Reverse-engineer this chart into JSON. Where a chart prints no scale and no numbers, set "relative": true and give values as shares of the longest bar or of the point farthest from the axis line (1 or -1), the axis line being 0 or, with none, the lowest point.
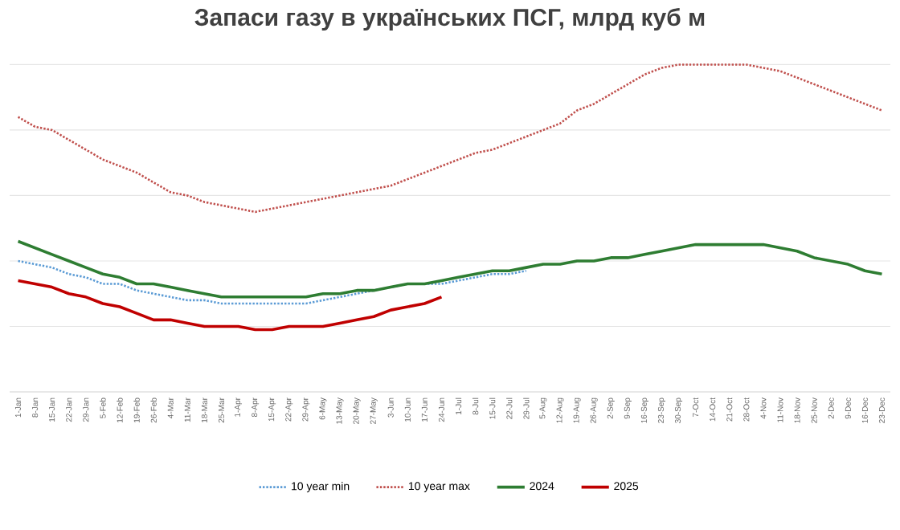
{
  "chart_data": {
    "type": "line",
    "title": "Запаси газу в українських ПСГ, млрд куб м",
    "relative": true,
    "grid": "y",
    "legend": "bottom",
    "marker": "none",
    "categories": [
      "1-Jan",
      "8-Jan",
      "15-Jan",
      "22-Jan",
      "29-Jan",
      "5-Feb",
      "12-Feb",
      "19-Feb",
      "26-Feb",
      "4-Mar",
      "11-Mar",
      "18-Mar",
      "25-Mar",
      "1-Apr",
      "8-Apr",
      "15-Apr",
      "22-Apr",
      "29-Apr",
      "6-May",
      "13-May",
      "20-May",
      "27-May",
      "3-Jun",
      "10-Jun",
      "17-Jun",
      "24-Jun",
      "1-Jul",
      "8-Jul",
      "15-Jul",
      "22-Jul",
      "29-Jul",
      "5-Aug",
      "12-Aug",
      "19-Aug",
      "26-Aug",
      "2-Sep",
      "9-Sep",
      "16-Sep",
      "23-Sep",
      "30-Sep",
      "7-Oct",
      "14-Oct",
      "21-Oct",
      "28-Oct",
      "4-Nov",
      "11-Nov",
      "18-Nov",
      "25-Nov",
      "2-Dec",
      "9-Dec",
      "16-Dec",
      "23-Dec"
    ],
    "series": [
      {
        "name": "10 year min",
        "color": "#5b9bd5",
        "line_style": "dotted",
        "values": [
          0.4,
          0.39,
          0.38,
          0.36,
          0.35,
          0.33,
          0.33,
          0.31,
          0.3,
          0.29,
          0.28,
          0.28,
          0.27,
          0.27,
          0.27,
          0.27,
          0.27,
          0.27,
          0.28,
          0.29,
          0.3,
          0.31,
          0.32,
          0.33,
          0.33,
          0.33,
          0.34,
          0.35,
          0.36,
          0.36,
          0.37,
          null,
          null,
          null,
          null,
          null,
          null,
          null,
          null,
          null,
          null,
          null,
          null,
          null,
          null,
          null,
          null,
          null,
          null,
          null,
          null,
          null
        ]
      },
      {
        "name": "10 year max",
        "color": "#c0504d",
        "line_style": "dotted",
        "values": [
          0.84,
          0.81,
          0.8,
          0.77,
          0.74,
          0.71,
          0.69,
          0.67,
          0.64,
          0.61,
          0.6,
          0.58,
          0.57,
          0.56,
          0.55,
          0.56,
          0.57,
          0.58,
          0.59,
          0.6,
          0.61,
          0.62,
          0.63,
          0.65,
          0.67,
          0.69,
          0.71,
          0.73,
          0.74,
          0.76,
          0.78,
          0.8,
          0.82,
          0.86,
          0.88,
          0.91,
          0.94,
          0.97,
          0.99,
          1.0,
          1.0,
          1.0,
          1.0,
          1.0,
          0.99,
          0.98,
          0.96,
          0.94,
          0.92,
          0.9,
          0.88,
          0.86
        ]
      },
      {
        "name": "2024",
        "color": "#2e7d32",
        "line_style": "solid",
        "values": [
          0.46,
          0.44,
          0.42,
          0.4,
          0.38,
          0.36,
          0.35,
          0.33,
          0.33,
          0.32,
          0.31,
          0.3,
          0.29,
          0.29,
          0.29,
          0.29,
          0.29,
          0.29,
          0.3,
          0.3,
          0.31,
          0.31,
          0.32,
          0.33,
          0.33,
          0.34,
          0.35,
          0.36,
          0.37,
          0.37,
          0.38,
          0.39,
          0.39,
          0.4,
          0.4,
          0.41,
          0.41,
          0.42,
          0.43,
          0.44,
          0.45,
          0.45,
          0.45,
          0.45,
          0.45,
          0.44,
          0.43,
          0.41,
          0.4,
          0.39,
          0.37,
          0.36
        ]
      },
      {
        "name": "2025",
        "color": "#c00000",
        "line_style": "solid",
        "values": [
          0.34,
          0.33,
          0.32,
          0.3,
          0.29,
          0.27,
          0.26,
          0.24,
          0.22,
          0.22,
          0.21,
          0.2,
          0.2,
          0.2,
          0.19,
          0.19,
          0.2,
          0.2,
          0.2,
          0.21,
          0.22,
          0.23,
          0.25,
          0.26,
          0.27,
          0.29,
          null,
          null,
          null,
          null,
          null,
          null,
          null,
          null,
          null,
          null,
          null,
          null,
          null,
          null,
          null,
          null,
          null,
          null,
          null,
          null,
          null,
          null,
          null,
          null,
          null,
          null
        ]
      }
    ]
  }
}
